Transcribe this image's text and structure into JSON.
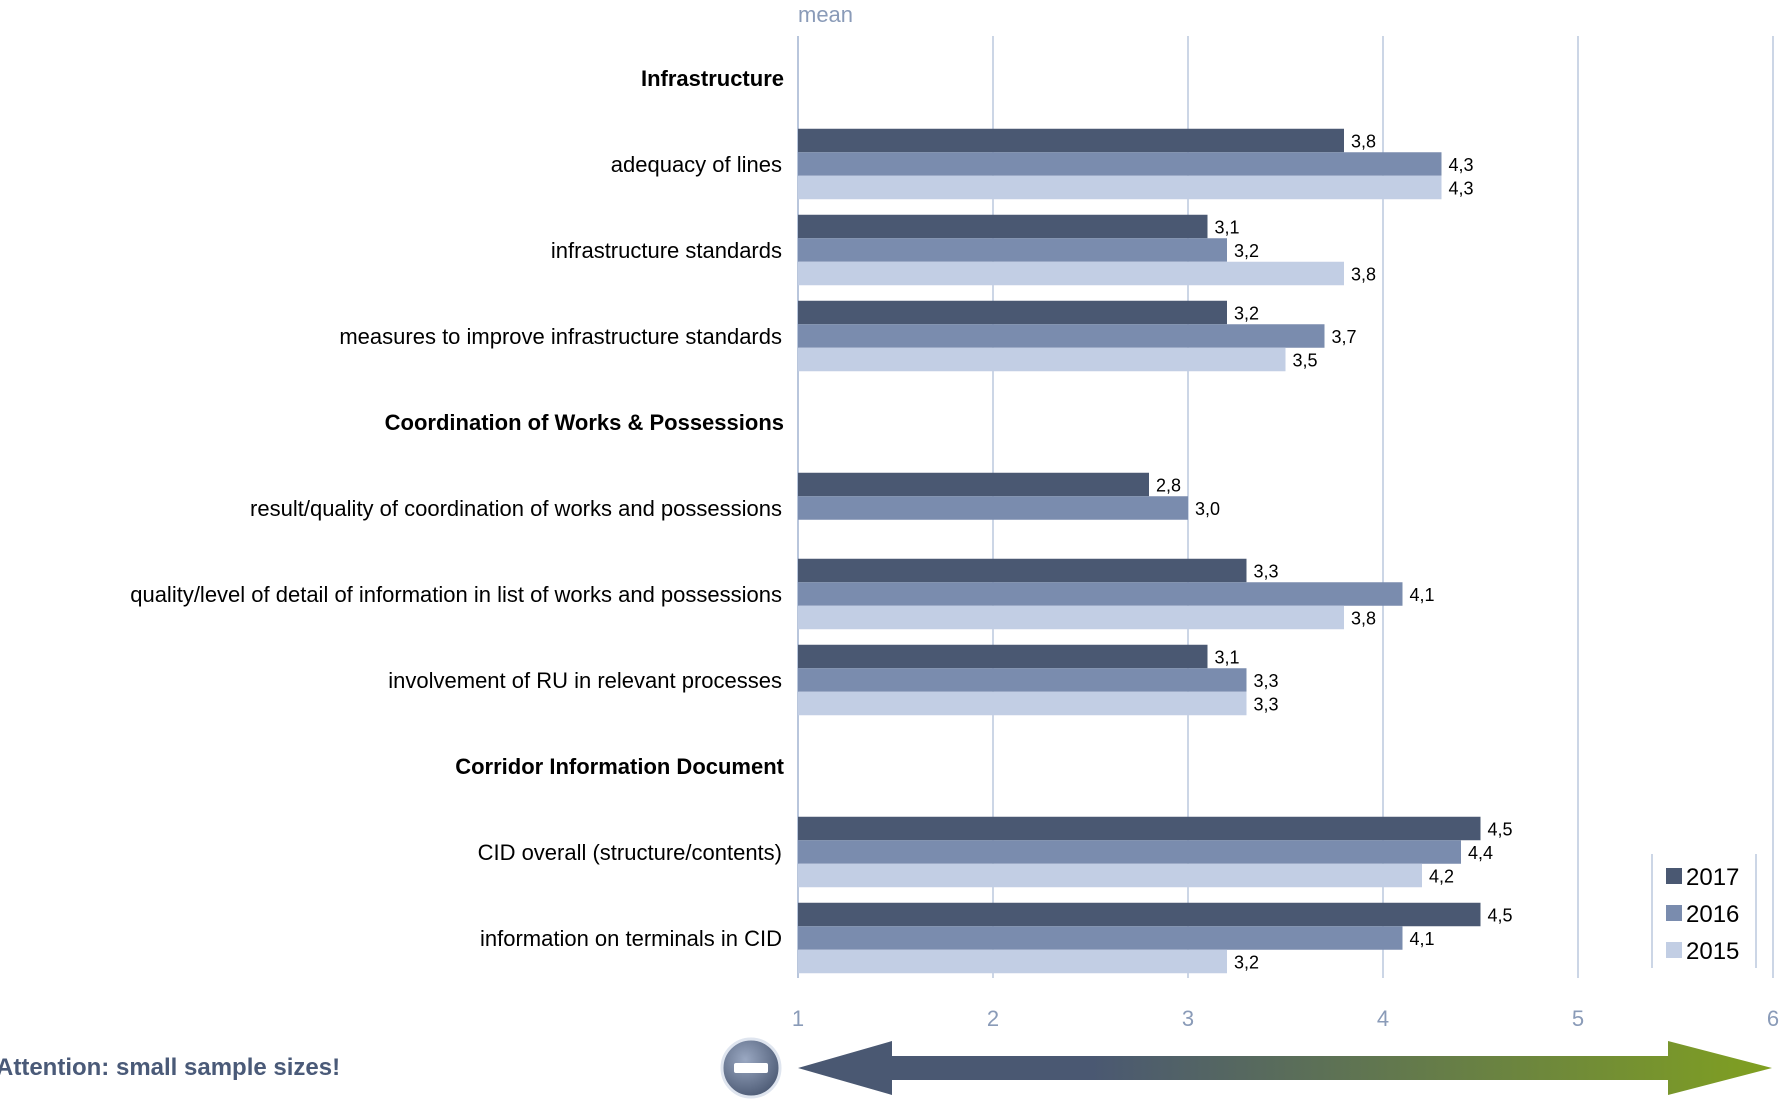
{
  "chart_data": {
    "type": "bar",
    "orientation": "horizontal",
    "value_axis_label": "mean",
    "xlim": [
      1,
      6
    ],
    "ticks": [
      "1",
      "2",
      "3",
      "4",
      "5",
      "6"
    ],
    "grid": true,
    "legend_position": "bottom-right",
    "series": [
      {
        "name": "2017",
        "color": "#4a5872"
      },
      {
        "name": "2016",
        "color": "#7a8cae"
      },
      {
        "name": "2015",
        "color": "#c2cee4"
      }
    ],
    "rows": [
      {
        "label": "Infrastructure",
        "header": true
      },
      {
        "label": "adequacy of lines",
        "values": [
          3.8,
          4.3,
          4.3
        ],
        "value_labels": [
          "3,8",
          "4,3",
          "4,3"
        ]
      },
      {
        "label": "infrastructure standards",
        "values": [
          3.1,
          3.2,
          3.8
        ],
        "value_labels": [
          "3,1",
          "3,2",
          "3,8"
        ]
      },
      {
        "label": "measures to improve infrastructure standards",
        "values": [
          3.2,
          3.7,
          3.5
        ],
        "value_labels": [
          "3,2",
          "3,7",
          "3,5"
        ]
      },
      {
        "label": "Coordination of Works & Possessions",
        "header": true
      },
      {
        "label": "result/quality of coordination of works and possessions",
        "values": [
          2.8,
          3.0,
          null
        ],
        "value_labels": [
          "2,8",
          "3,0",
          null
        ]
      },
      {
        "label": "quality/level of detail of information in list of works and possessions",
        "values": [
          3.3,
          4.1,
          3.8
        ],
        "value_labels": [
          "3,3",
          "4,1",
          "3,8"
        ]
      },
      {
        "label": "involvement of RU in relevant processes",
        "values": [
          3.1,
          3.3,
          3.3
        ],
        "value_labels": [
          "3,1",
          "3,3",
          "3,3"
        ]
      },
      {
        "label": "Corridor Information Document",
        "header": true
      },
      {
        "label": "CID overall (structure/contents)",
        "values": [
          4.5,
          4.4,
          4.2
        ],
        "value_labels": [
          "4,5",
          "4,4",
          "4,2"
        ]
      },
      {
        "label": "information on terminals in CID",
        "values": [
          4.5,
          4.1,
          3.2
        ],
        "value_labels": [
          "4,5",
          "4,1",
          "3,2"
        ]
      }
    ]
  },
  "footer": {
    "note": "Attention: small sample sizes!",
    "minus_icon": "minus-circle-icon",
    "arrow_icon": "gradient-double-arrow-icon",
    "arrow_colors": [
      "#4a5872",
      "#80a020"
    ]
  }
}
